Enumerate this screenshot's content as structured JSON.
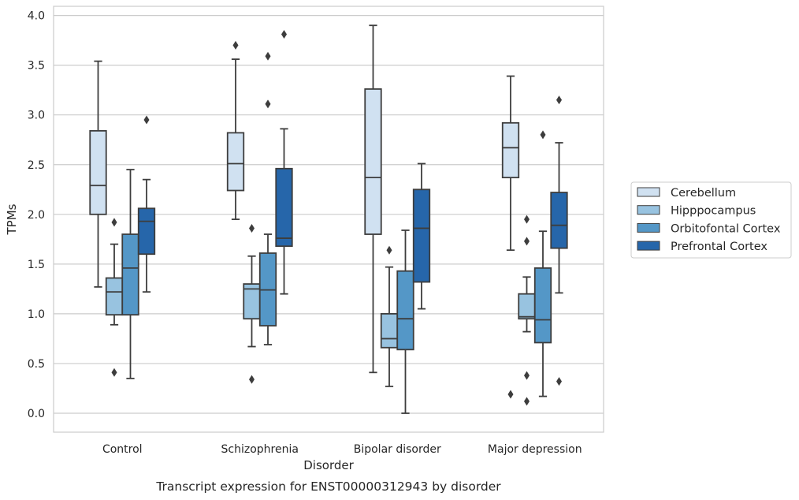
{
  "chart_data": {
    "type": "box",
    "title": "",
    "caption": "Transcript expression for ENST00000312943 by disorder",
    "xlabel": "Disorder",
    "ylabel": "TPMs",
    "ylim": [
      -0.18,
      4.1
    ],
    "yticks": [
      "0.0",
      "0.5",
      "1.0",
      "1.5",
      "2.0",
      "2.5",
      "3.0",
      "3.5",
      "4.0"
    ],
    "grid": "horizontal",
    "legend_position": "right",
    "categories": [
      "Control",
      "Schizophrenia",
      "Bipolar disorder",
      "Major depression"
    ],
    "series": [
      {
        "name": "Cerebellum",
        "color": "#d0e1f1",
        "boxes": [
          {
            "whisker_low": 1.27,
            "q1": 2.0,
            "median": 2.29,
            "q3": 2.84,
            "whisker_high": 3.54,
            "outliers": []
          },
          {
            "whisker_low": 1.95,
            "q1": 2.24,
            "median": 2.51,
            "q3": 2.82,
            "whisker_high": 3.56,
            "outliers": [
              3.7
            ]
          },
          {
            "whisker_low": 0.41,
            "q1": 1.8,
            "median": 2.37,
            "q3": 3.26,
            "whisker_high": 3.9,
            "outliers": []
          },
          {
            "whisker_low": 1.64,
            "q1": 2.37,
            "median": 2.67,
            "q3": 2.92,
            "whisker_high": 3.39,
            "outliers": [
              0.19
            ]
          }
        ]
      },
      {
        "name": "Hipppocampus",
        "color": "#98c3e0",
        "boxes": [
          {
            "whisker_low": 0.89,
            "q1": 0.99,
            "median": 1.22,
            "q3": 1.36,
            "whisker_high": 1.7,
            "outliers": [
              1.92,
              0.41
            ]
          },
          {
            "whisker_low": 0.67,
            "q1": 0.95,
            "median": 1.25,
            "q3": 1.3,
            "whisker_high": 1.58,
            "outliers": [
              1.86,
              0.34
            ]
          },
          {
            "whisker_low": 0.27,
            "q1": 0.66,
            "median": 0.75,
            "q3": 1.0,
            "whisker_high": 1.47,
            "outliers": [
              1.64
            ]
          },
          {
            "whisker_low": 0.82,
            "q1": 0.95,
            "median": 0.97,
            "q3": 1.2,
            "whisker_high": 1.37,
            "outliers": [
              1.95,
              1.73,
              0.38,
              0.12
            ]
          }
        ]
      },
      {
        "name": "Orbitofontal Cortex",
        "color": "#5497c7",
        "boxes": [
          {
            "whisker_low": 0.35,
            "q1": 0.99,
            "median": 1.46,
            "q3": 1.8,
            "whisker_high": 2.45,
            "outliers": []
          },
          {
            "whisker_low": 0.69,
            "q1": 0.88,
            "median": 1.24,
            "q3": 1.61,
            "whisker_high": 1.8,
            "outliers": [
              3.59,
              3.11
            ]
          },
          {
            "whisker_low": 0.0,
            "q1": 0.64,
            "median": 0.95,
            "q3": 1.43,
            "whisker_high": 1.84,
            "outliers": []
          },
          {
            "whisker_low": 0.17,
            "q1": 0.71,
            "median": 0.94,
            "q3": 1.46,
            "whisker_high": 1.83,
            "outliers": [
              2.8
            ]
          }
        ]
      },
      {
        "name": "Prefrontal Cortex",
        "color": "#2666aa",
        "boxes": [
          {
            "whisker_low": 1.22,
            "q1": 1.6,
            "median": 1.93,
            "q3": 2.06,
            "whisker_high": 2.35,
            "outliers": [
              2.95
            ]
          },
          {
            "whisker_low": 1.2,
            "q1": 1.68,
            "median": 1.76,
            "q3": 2.46,
            "whisker_high": 2.86,
            "outliers": [
              3.81
            ]
          },
          {
            "whisker_low": 1.05,
            "q1": 1.32,
            "median": 1.86,
            "q3": 2.25,
            "whisker_high": 2.51,
            "outliers": []
          },
          {
            "whisker_low": 1.21,
            "q1": 1.66,
            "median": 1.89,
            "q3": 2.22,
            "whisker_high": 2.72,
            "outliers": [
              3.15,
              0.32
            ]
          }
        ]
      }
    ]
  },
  "colors": {
    "grid": "#cccccc",
    "frame": "#cccccc",
    "box_edge": "#3d3d3d",
    "text": "#262626"
  }
}
